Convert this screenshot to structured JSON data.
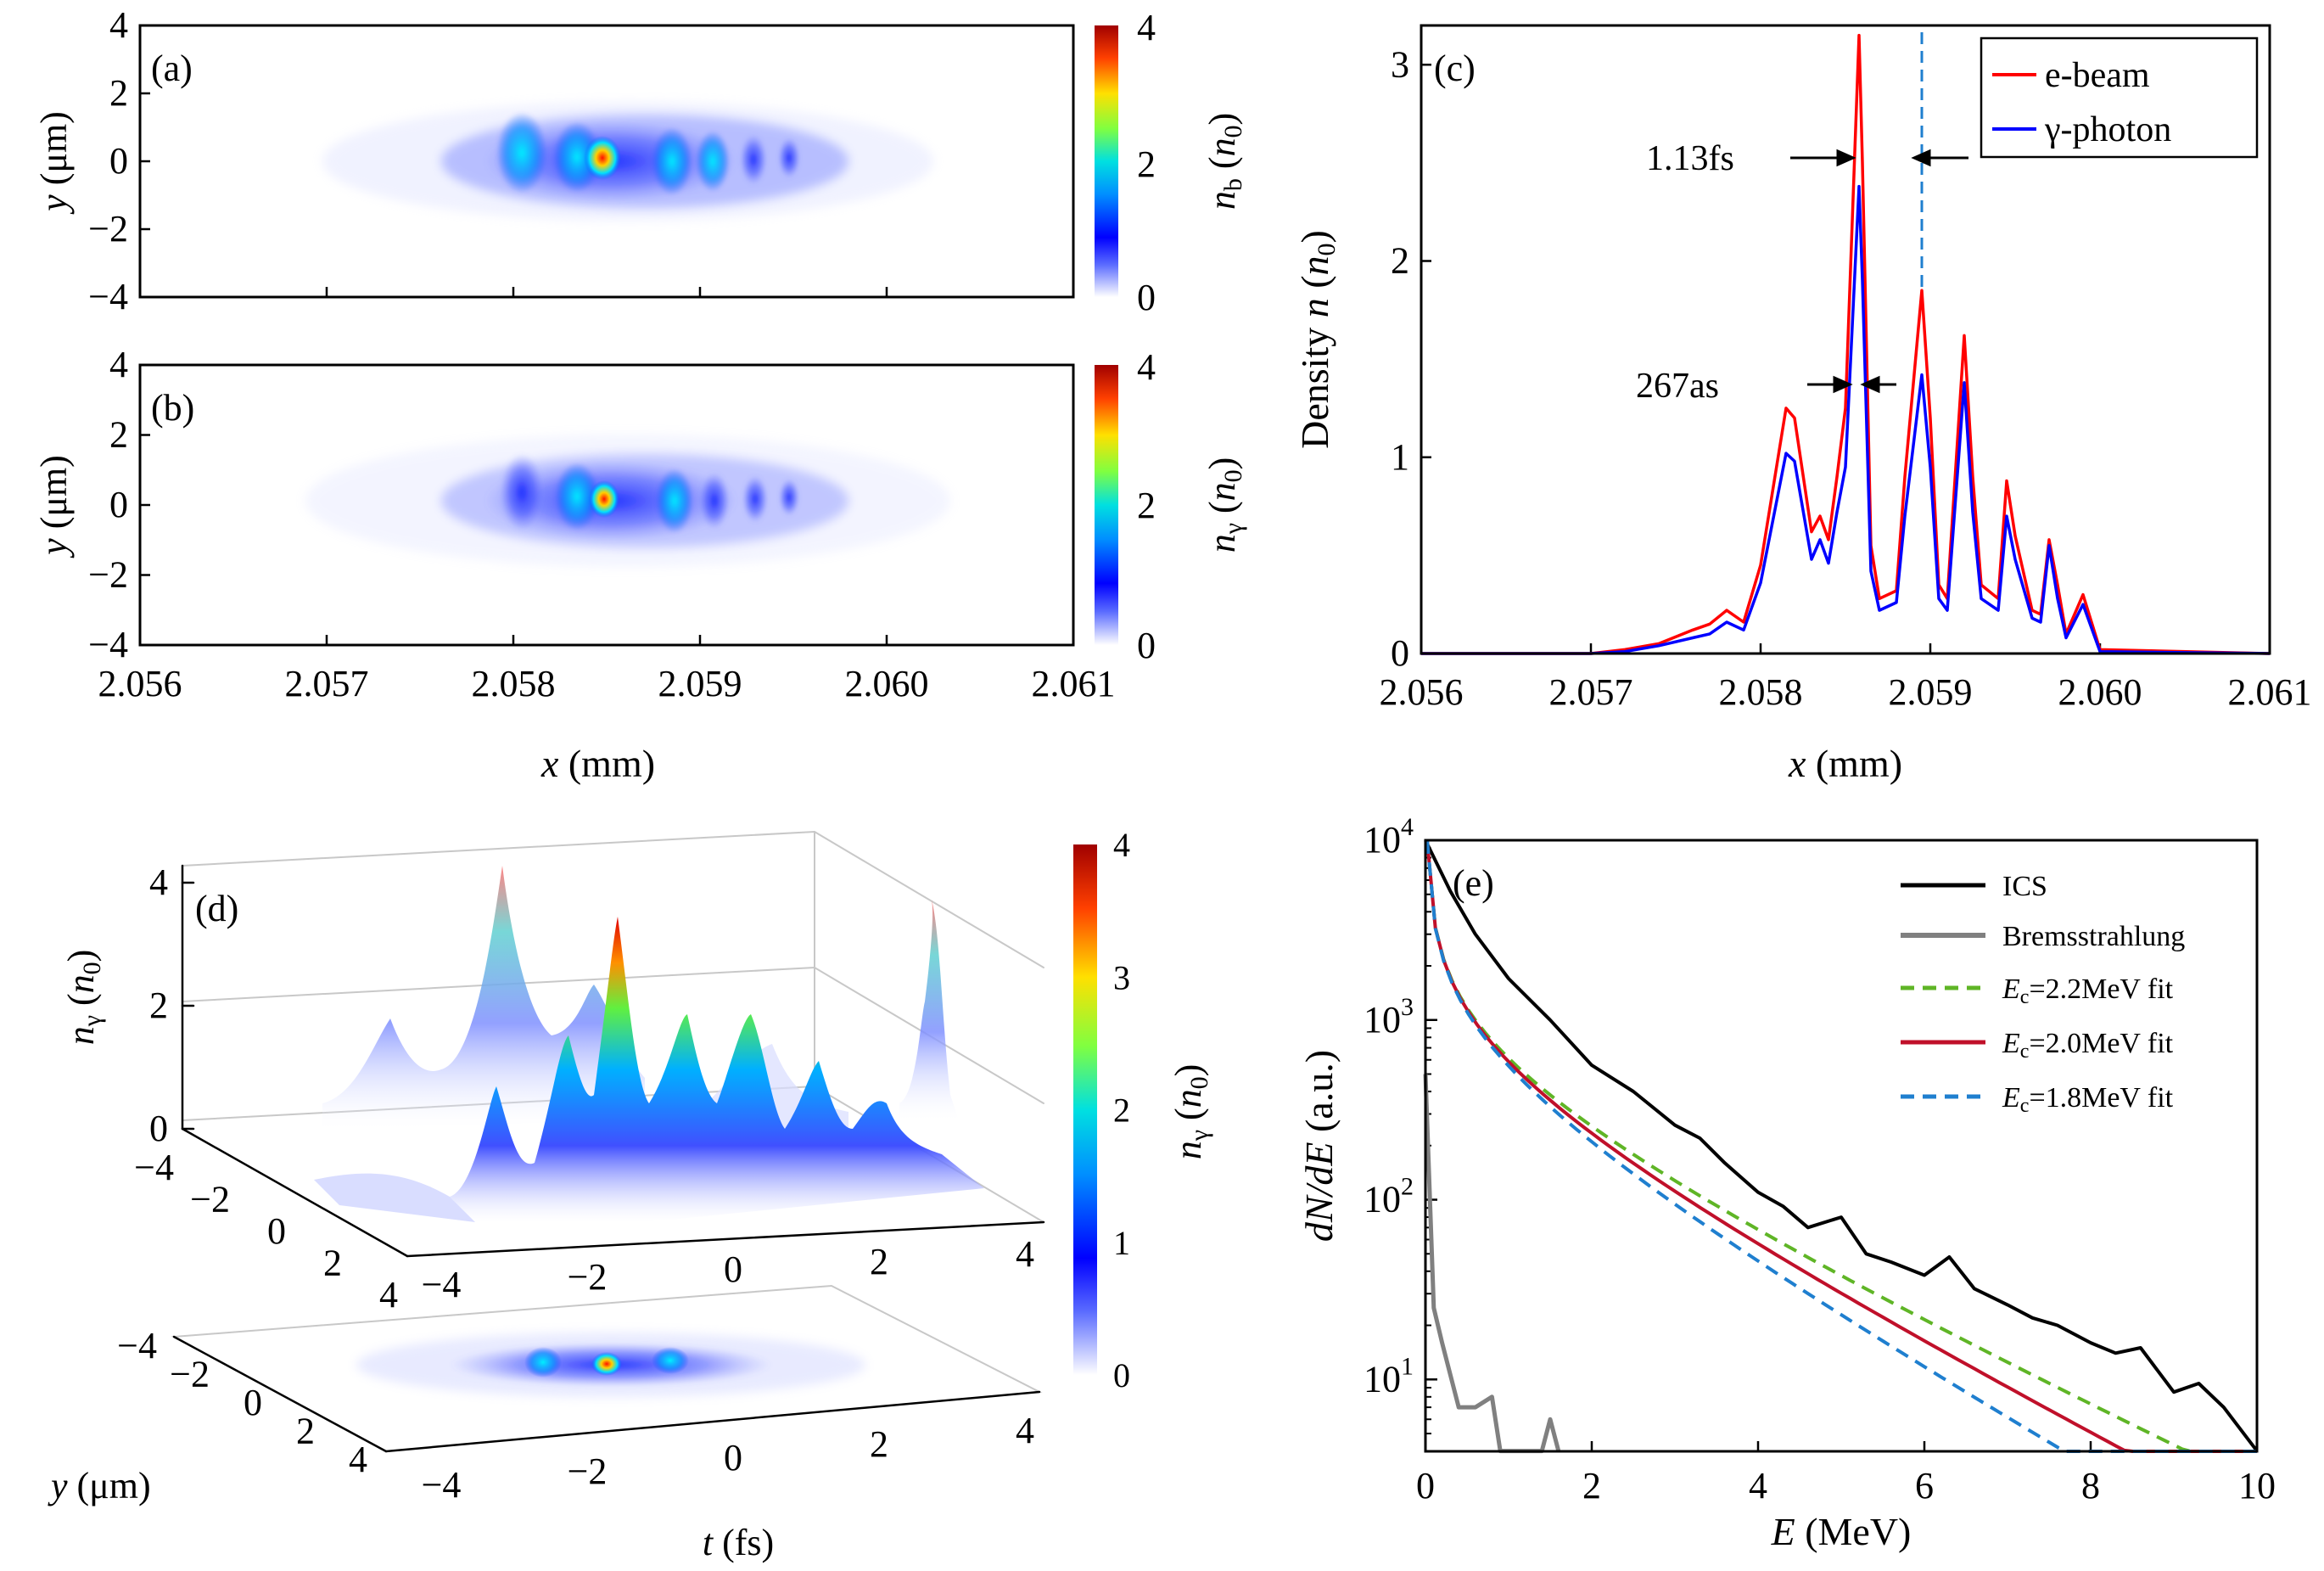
{
  "figure": {
    "panel_a": {
      "label": "(a)",
      "ylabel_var": "y",
      "ylabel_unit": " (μm)",
      "cbar_var": "n",
      "cbar_sub": "b",
      "cbar_unit_pre": " (",
      "cbar_unit_var": "n",
      "cbar_unit_sub": "0",
      "cbar_unit_post": ")",
      "cbar_ticks": [
        "0",
        "2",
        "4"
      ],
      "yticks": [
        "4",
        "2",
        "0",
        "−2",
        "−4"
      ]
    },
    "panel_b": {
      "label": "(b)",
      "ylabel_var": "y",
      "ylabel_unit": " (μm)",
      "cbar_var": "n",
      "cbar_sub": "γ",
      "cbar_unit_pre": " (",
      "cbar_unit_var": "n",
      "cbar_unit_sub": "0",
      "cbar_unit_post": ")",
      "cbar_ticks": [
        "0",
        "2",
        "4"
      ],
      "yticks": [
        "4",
        "2",
        "0",
        "−2",
        "−4"
      ],
      "xticks": [
        "2.056",
        "2.057",
        "2.058",
        "2.059",
        "2.060",
        "2.061"
      ],
      "xlabel_var": "x",
      "xlabel_unit": " (mm)"
    },
    "panel_c": {
      "label": "(c)",
      "ylabel_pre": "Density ",
      "ylabel_var": "n",
      "ylabel_unit_pre": " (",
      "ylabel_unit_var": "n",
      "ylabel_unit_sub": "0",
      "ylabel_unit_post": ")",
      "xlabel_var": "x",
      "xlabel_unit": " (mm)",
      "annotation_1": "1.13fs",
      "annotation_2": "267as",
      "legend": [
        "e-beam",
        "γ-photon"
      ]
    },
    "panel_d": {
      "label": "(d)",
      "zlabel_var": "n",
      "zlabel_sub": "γ",
      "zlabel_unit_pre": " (",
      "zlabel_unit_var": "n",
      "zlabel_unit_sub": "0",
      "zlabel_unit_post": ")",
      "zticks": [
        "0",
        "2",
        "4"
      ],
      "y_ticks_upper": [
        "−4",
        "−2",
        "0",
        "2",
        "4"
      ],
      "t_ticks_upper": [
        "−4",
        "−2",
        "0",
        "2",
        "4"
      ],
      "y_ticks_lower": [
        "−4",
        "−2",
        "0",
        "2",
        "4"
      ],
      "t_ticks_lower": [
        "−4",
        "−2",
        "0",
        "2",
        "4"
      ],
      "ylabel_var": "y",
      "ylabel_unit": " (μm)",
      "tlabel_var": "t",
      "tlabel_unit": " (fs)",
      "cbar_var": "n",
      "cbar_sub": "γ",
      "cbar_unit_pre": " (",
      "cbar_unit_var": "n",
      "cbar_unit_sub": "0",
      "cbar_unit_post": ")",
      "cbar_ticks": [
        "0",
        "1",
        "2",
        "3",
        "4"
      ]
    },
    "panel_e": {
      "label": "(e)",
      "ylabel_var": "dN/dE",
      "ylabel_unit": " (a.u.)",
      "xlabel_var": "E",
      "xlabel_unit": " (MeV)",
      "legend": [
        {
          "text": "ICS"
        },
        {
          "text": "Bremsstrahlung"
        },
        {
          "var": "E",
          "sub": "c",
          "text": "=2.2MeV fit"
        },
        {
          "var": "E",
          "sub": "c",
          "text": "=2.0MeV fit"
        },
        {
          "var": "E",
          "sub": "c",
          "text": "=1.8MeV fit"
        }
      ]
    }
  },
  "chart_data": [
    {
      "id": "c",
      "type": "line",
      "title": "(c)",
      "xlabel": "x (mm)",
      "ylabel": "Density n (n0)",
      "xlim": [
        2.056,
        2.061
      ],
      "ylim": [
        0,
        3.2
      ],
      "xticks": [
        2.056,
        2.057,
        2.058,
        2.059,
        2.06,
        2.061
      ],
      "yticks": [
        0,
        1,
        2,
        3
      ],
      "vline": 2.05895,
      "series": [
        {
          "name": "e-beam",
          "color": "#ff0000",
          "x": [
            2.056,
            2.057,
            2.0572,
            2.0574,
            2.0576,
            2.0577,
            2.0578,
            2.0579,
            2.058,
            2.05815,
            2.0582,
            2.0583,
            2.05835,
            2.0584,
            2.05845,
            2.0585,
            2.05858,
            2.0586,
            2.05865,
            2.0587,
            2.0588,
            2.05885,
            2.05895,
            2.059,
            2.05905,
            2.0591,
            2.0592,
            2.05925,
            2.0593,
            2.0594,
            2.05945,
            2.0595,
            2.0596,
            2.05965,
            2.0597,
            2.05975,
            2.0598,
            2.0599,
            2.06,
            2.061
          ],
          "y": [
            0,
            0,
            0.02,
            0.05,
            0.12,
            0.15,
            0.22,
            0.16,
            0.45,
            1.25,
            1.2,
            0.62,
            0.7,
            0.58,
            0.9,
            1.25,
            3.15,
            2.5,
            0.55,
            0.28,
            0.32,
            0.9,
            1.85,
            1.2,
            0.35,
            0.28,
            1.62,
            0.9,
            0.35,
            0.28,
            0.88,
            0.6,
            0.22,
            0.2,
            0.58,
            0.35,
            0.1,
            0.3,
            0.02,
            0
          ]
        },
        {
          "name": "γ-photon",
          "color": "#0000ff",
          "x": [
            2.056,
            2.057,
            2.0572,
            2.0574,
            2.0576,
            2.0577,
            2.0578,
            2.0579,
            2.058,
            2.05815,
            2.0582,
            2.0583,
            2.05835,
            2.0584,
            2.05845,
            2.0585,
            2.05858,
            2.0586,
            2.05865,
            2.0587,
            2.0588,
            2.05885,
            2.05895,
            2.059,
            2.05905,
            2.0591,
            2.0592,
            2.05925,
            2.0593,
            2.0594,
            2.05945,
            2.0595,
            2.0596,
            2.05965,
            2.0597,
            2.05975,
            2.0598,
            2.0599,
            2.06,
            2.061
          ],
          "y": [
            0,
            0,
            0.01,
            0.04,
            0.08,
            0.1,
            0.16,
            0.12,
            0.36,
            1.02,
            0.98,
            0.48,
            0.58,
            0.46,
            0.72,
            0.95,
            2.38,
            1.9,
            0.42,
            0.22,
            0.26,
            0.7,
            1.42,
            0.95,
            0.28,
            0.22,
            1.38,
            0.72,
            0.28,
            0.22,
            0.7,
            0.48,
            0.18,
            0.16,
            0.55,
            0.28,
            0.08,
            0.25,
            0.01,
            0
          ]
        }
      ]
    },
    {
      "id": "e",
      "type": "line",
      "title": "(e)",
      "xlabel": "E (MeV)",
      "ylabel": "dN/dE (a.u.)",
      "xlim": [
        0,
        10
      ],
      "ylim_log10": [
        0.6,
        4
      ],
      "xticks": [
        0,
        2,
        4,
        6,
        8,
        10
      ],
      "yticks_log10": [
        1,
        2,
        3,
        4
      ],
      "series": [
        {
          "name": "ICS",
          "color": "#000000",
          "x": [
            0,
            0.3,
            0.6,
            1.0,
            1.5,
            2.0,
            2.5,
            3.0,
            3.3,
            3.6,
            4.0,
            4.3,
            4.6,
            5.0,
            5.3,
            5.6,
            6.0,
            6.3,
            6.6,
            7.0,
            7.3,
            7.6,
            8.0,
            8.3,
            8.6,
            9.0,
            9.3,
            9.6,
            10.0
          ],
          "y": [
            10000,
            5200,
            3000,
            1700,
            1000,
            560,
            400,
            260,
            220,
            160,
            110,
            92,
            70,
            80,
            50,
            45,
            38,
            48,
            32,
            26,
            22,
            20,
            16,
            14,
            15,
            8.5,
            9.5,
            7,
            4
          ]
        },
        {
          "name": "Bremsstrahlung",
          "color": "#808080",
          "x": [
            0,
            0.1,
            0.2,
            0.4,
            0.6,
            0.8,
            0.9,
            1.4,
            1.5,
            1.6
          ],
          "y": [
            500,
            25,
            16,
            7,
            7,
            8,
            4,
            4,
            6,
            4
          ]
        },
        {
          "name": "Ec=2.2MeV fit",
          "color": "#5fb526",
          "dashed": true,
          "Ec": 2.2,
          "alpha": 0.6
        },
        {
          "name": "Ec=2.0MeV fit",
          "color": "#c0102a",
          "dashed": false,
          "Ec": 2.0,
          "alpha": 0.6
        },
        {
          "name": "Ec=1.8MeV fit",
          "color": "#1f7fcf",
          "dashed": true,
          "Ec": 1.8,
          "alpha": 0.6
        }
      ]
    }
  ]
}
